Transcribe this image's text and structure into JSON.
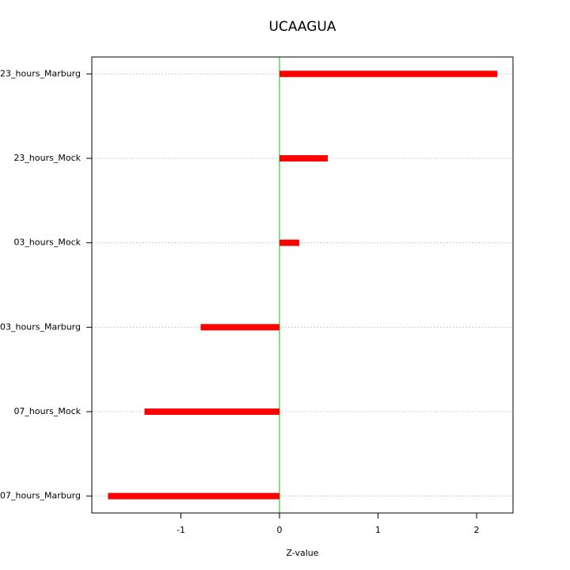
{
  "chart_data": {
    "type": "barh",
    "title": "UCAAGUA",
    "x_label": "Z-value",
    "categories": [
      "07_hours_Marburg",
      "07_hours_Mock",
      "03_hours_Marburg",
      "03_hours_Mock",
      "23_hours_Mock",
      "23_hours_Marburg"
    ],
    "values": [
      -1.74,
      -1.37,
      -0.8,
      0.2,
      0.49,
      2.21
    ],
    "color": "#ff0000",
    "zero_line_color": "#00cc00",
    "xlim": [
      -1.904,
      2.369
    ],
    "xticks": [
      -1,
      0,
      1,
      2
    ],
    "grid": true
  }
}
